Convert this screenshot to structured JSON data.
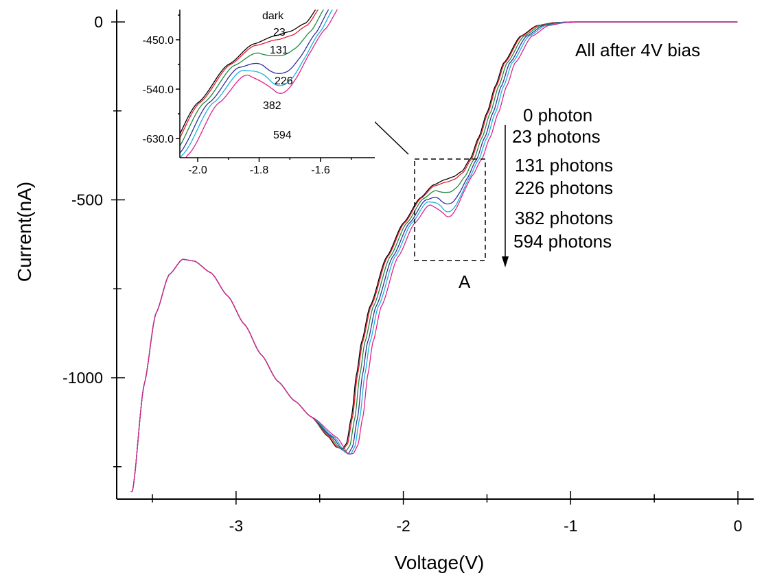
{
  "chart_data": [
    {
      "type": "line",
      "title": "",
      "xlabel": "Voltage(V)",
      "ylabel": "Current(nA)",
      "xlim": [
        -3.65,
        0.05
      ],
      "ylim": [
        -1320,
        20
      ],
      "xticks": [
        "-3",
        "-2",
        "-1",
        "0"
      ],
      "yticks": [
        "0",
        "-500",
        "-1000"
      ],
      "series": [
        {
          "name": "0 photon",
          "color": "#000000",
          "shift_v": 0.0,
          "dip": 0.0
        },
        {
          "name": "23 photons",
          "color": "#e8192c",
          "shift_v": 0.006,
          "dip": 0.08
        },
        {
          "name": "131 photons",
          "color": "#1a8a3a",
          "shift_v": 0.02,
          "dip": 0.38
        },
        {
          "name": "226 photons",
          "color": "#2e2e9e",
          "shift_v": 0.036,
          "dip": 0.7
        },
        {
          "name": "382 photons",
          "color": "#1ab2d8",
          "shift_v": 0.05,
          "dip": 0.9
        },
        {
          "name": "594 photons",
          "color": "#e0208a",
          "shift_v": 0.068,
          "dip": 1.0
        }
      ],
      "base_curve": [
        [
          -3.62,
          -1320
        ],
        [
          -3.55,
          -1020
        ],
        [
          -3.48,
          -820
        ],
        [
          -3.4,
          -710
        ],
        [
          -3.32,
          -667
        ],
        [
          -3.25,
          -672
        ],
        [
          -3.15,
          -705
        ],
        [
          -3.05,
          -770
        ],
        [
          -2.95,
          -850
        ],
        [
          -2.85,
          -935
        ],
        [
          -2.75,
          -1010
        ],
        [
          -2.65,
          -1065
        ],
        [
          -2.55,
          -1110
        ],
        [
          -2.45,
          -1165
        ],
        [
          -2.4,
          -1195
        ],
        [
          -2.365,
          -1200
        ],
        [
          -2.34,
          -1185
        ],
        [
          -2.31,
          -1110
        ],
        [
          -2.28,
          -990
        ],
        [
          -2.25,
          -900
        ],
        [
          -2.2,
          -800
        ],
        [
          -2.1,
          -660
        ],
        [
          -2.0,
          -565
        ],
        [
          -1.9,
          -495
        ],
        [
          -1.82,
          -458
        ],
        [
          -1.75,
          -443
        ],
        [
          -1.7,
          -435
        ],
        [
          -1.65,
          -420
        ],
        [
          -1.6,
          -385
        ],
        [
          -1.55,
          -325
        ],
        [
          -1.5,
          -255
        ],
        [
          -1.45,
          -180
        ],
        [
          -1.4,
          -115
        ],
        [
          -1.3,
          -40
        ],
        [
          -1.2,
          -10
        ],
        [
          -1.1,
          -2
        ],
        [
          -1.0,
          0
        ],
        [
          -0.9,
          0
        ],
        [
          0.0,
          0
        ]
      ],
      "annotations": {
        "bias_note": "All after 4V bias",
        "box_label": "A",
        "photon_labels": [
          "0 photon",
          "23 photons",
          "131 photons",
          "226 photons",
          "382 photons",
          "594 photons"
        ]
      }
    },
    {
      "type": "line",
      "title": "",
      "inset": true,
      "xlim": [
        -2.07,
        -1.45
      ],
      "ylim": [
        -665,
        -405
      ],
      "xticks": [
        "-2.0",
        "-1.8",
        "-1.6"
      ],
      "yticks": [
        "-450.0",
        "-540.0",
        "-630.0"
      ],
      "curve_labels": [
        "dark",
        "23",
        "131",
        "226",
        "382",
        "594"
      ]
    }
  ]
}
